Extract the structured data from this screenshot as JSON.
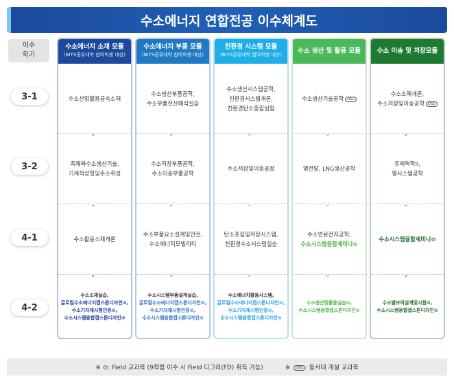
{
  "title": "수소에너지 연합전공 이수체계도",
  "semester_header": [
    "이수",
    "학기"
  ],
  "semesters": [
    "3-1",
    "3-2",
    "4-1",
    "4-2"
  ],
  "colors": {
    "col1": "#1b4a9c",
    "col2": "#1f7ac4",
    "col3": "#1eaee8",
    "col4": "#4cb85c",
    "col5": "#1e7a32"
  },
  "modules": [
    {
      "title": "수소에너지 소재 모듈",
      "subtitle": "(BITS공유대학 참여학생 대상)",
      "header_color": "#1b4a9c",
      "border_color": "#b6bde6",
      "accent": "#1b3a9a",
      "cells": [
        [
          {
            "t": "수소산업활용금속소재"
          }
        ],
        [
          {
            "t": "촉매와수소생산기술,"
          },
          {
            "t": "기계적성질및수소취성"
          }
        ],
        [
          {
            "t": "수소활용소재개론"
          }
        ],
        [
          {
            "t": "수소소재실습,"
          },
          {
            "t": "글로컬수소에너지캡스톤디자인⊙,",
            "a": 1
          },
          {
            "t": "수소기자재시험인증⊙,",
            "a": 1
          },
          {
            "t": "수소시스템융합캡스톤디자인⊙",
            "a": 1
          }
        ]
      ]
    },
    {
      "title": "수소에너지 부품 모듈",
      "subtitle": "(BITS공유대학 참여학생 대상)",
      "header_color": "#1f7ac4",
      "border_color": "#b6c8e6",
      "accent": "#2a6fc0",
      "cells": [
        [
          {
            "t": "수소생산부품공학,"
          },
          {
            "t": "수소부품전산해석실습"
          }
        ],
        [
          {
            "t": "수소저장부품공학,"
          },
          {
            "t": "수소이송부품공학"
          }
        ],
        [
          {
            "t": "수소부품요소설계및안전,"
          },
          {
            "t": "수소에너지모빌리티"
          }
        ],
        [
          {
            "t": "수소시스템부품설계실습,"
          },
          {
            "t": "글로컬수소에너지캡스톤디자인⊙,",
            "a": 1
          },
          {
            "t": "수소기자재시험인증⊙,",
            "a": 1
          },
          {
            "t": "수소시스템융합캡스톤디자인⊙",
            "a": 1
          }
        ]
      ]
    },
    {
      "title": "친환경 시스템 모듈",
      "subtitle": "(BITS공유대학 참여학생 대상)",
      "header_color": "#1eaee8",
      "border_color": "#b4e0f6",
      "accent": "#1ea0e0",
      "cells": [
        [
          {
            "t": "수소생산시스템공학,"
          },
          {
            "t": "친환경시스템개론,"
          },
          {
            "t": "친환경탄소중립실험"
          }
        ],
        [
          {
            "t": "수소저장및이송공정"
          }
        ],
        [
          {
            "t": "탄소포집및저장시스템,"
          },
          {
            "t": "친환경수소시스템실습"
          }
        ],
        [
          {
            "t": "수소에너지활용시스템,"
          },
          {
            "t": "글로컬수소에너지캡스톤디자인⊙,",
            "a": 1
          },
          {
            "t": "수소기자재시험인증⊙,",
            "a": 1
          },
          {
            "t": "수소시스템융합캡스톤디자인⊙",
            "a": 1
          }
        ]
      ]
    },
    {
      "title": "수소 생산 및 활용 모듈",
      "subtitle": "",
      "header_color": "#4cb85c",
      "border_color": "#cde8cc",
      "accent": "#4cb040",
      "cells": [
        [
          {
            "t": "수소생산기술공학",
            "dsu": "DSU"
          }
        ],
        [
          {
            "t": "열전달, LNG생산공학"
          }
        ],
        [
          {
            "t": "수소연료전지공학,"
          },
          {
            "t": "수소시스템융합세미나⊙",
            "a": 1
          }
        ],
        [
          {
            "t": "수소생산및활용실습⊙,",
            "a": 1
          },
          {
            "t": "수소시스템융합캡스톤디자인⊙",
            "a": 1
          }
        ]
      ]
    },
    {
      "title": "수소 이송 및 저장모듈",
      "subtitle": "",
      "header_color": "#1e7a32",
      "border_color": "#b8ccb4",
      "accent": "#1d6b2a",
      "cells": [
        [
          {
            "t": "수소소재개론,"
          },
          {
            "t": "수소저장및이송공학",
            "dsu": "DSU"
          }
        ],
        [
          {
            "t": "유체역학II,"
          },
          {
            "t": "열시스템공학"
          }
        ],
        [
          {
            "t": "수소시스템융합세미나⊙",
            "a": 1
          }
        ],
        [
          {
            "t": "수소밸브의설계및시험⊙,",
            "a": 1
          },
          {
            "t": "수소시스템융합캡스톤디자인⊙",
            "a": 1
          }
        ]
      ]
    }
  ],
  "footer": {
    "field_note": "※ ⊙: Field 교과목 (9학점 이수 시 Field 디그리(FD) 취득 가능)",
    "dsu_note_prefix": "※",
    "dsu_badge": "DSU",
    "dsu_note": ": 동서대 개설 교과목"
  }
}
